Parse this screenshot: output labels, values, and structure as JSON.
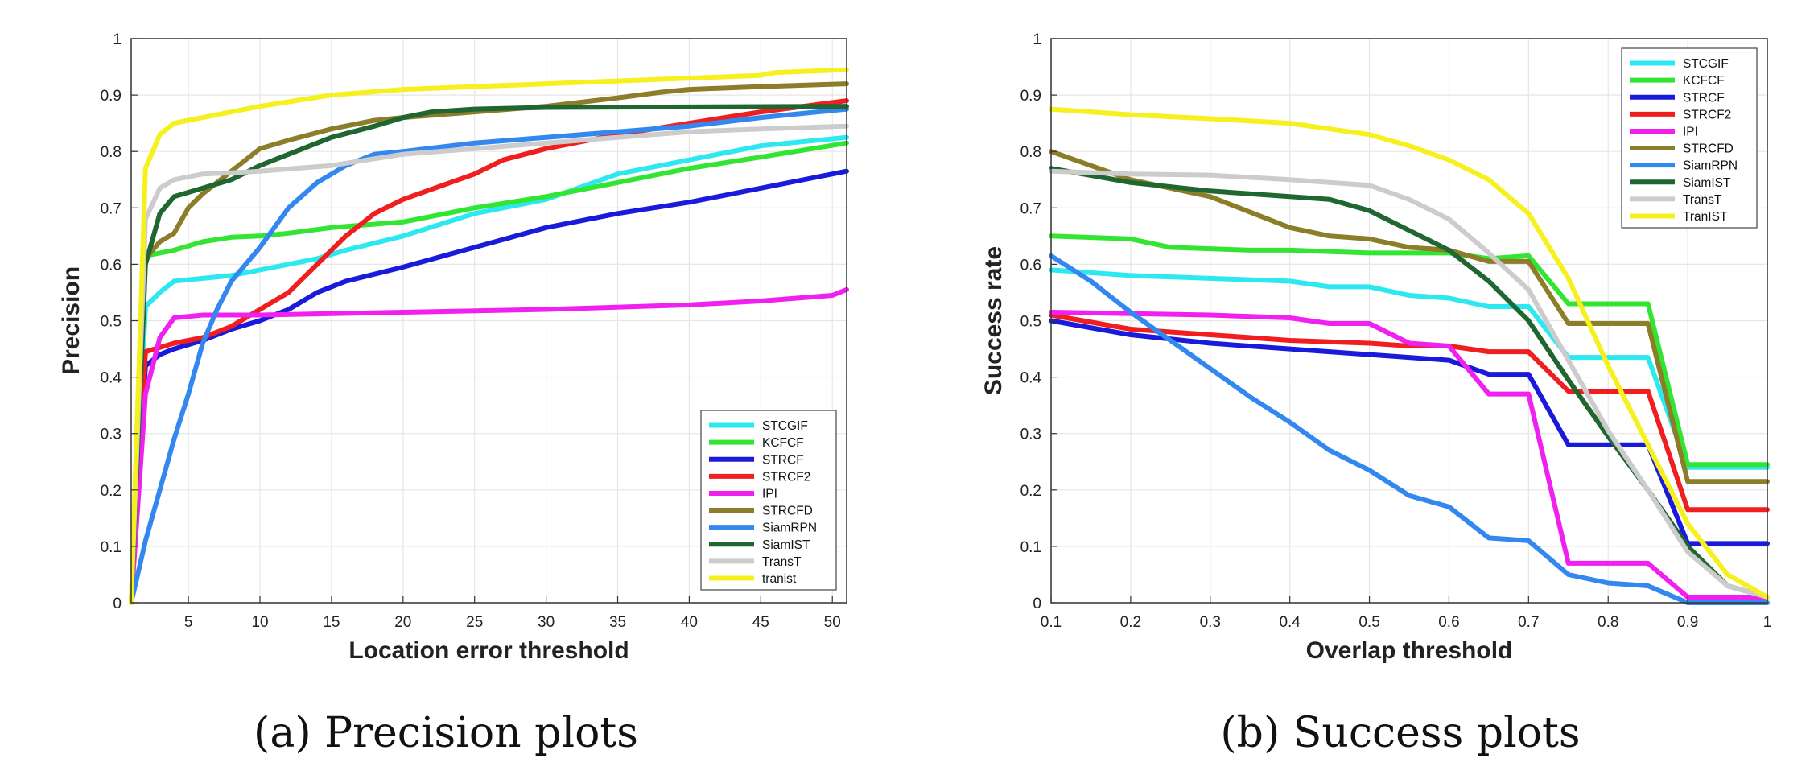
{
  "chart_data": [
    {
      "type": "line",
      "xlabel": "Location error threshold",
      "ylabel": "Precision",
      "caption": "(a) Precision plots",
      "xlim": [
        1,
        51
      ],
      "ylim": [
        0,
        1
      ],
      "xticks": [
        5,
        10,
        15,
        20,
        25,
        30,
        35,
        40,
        45,
        50
      ],
      "yticks": [
        0,
        0.1,
        0.2,
        0.3,
        0.4,
        0.5,
        0.6,
        0.7,
        0.8,
        0.9,
        1
      ],
      "grid": true,
      "legend_position": "bottom-right",
      "series": [
        {
          "name": "STCGIF",
          "color": "#2de8f0",
          "x": [
            1,
            2,
            3,
            4,
            6,
            8,
            10,
            12,
            14,
            16,
            20,
            25,
            30,
            35,
            40,
            45,
            51
          ],
          "y": [
            0,
            0.525,
            0.55,
            0.57,
            0.575,
            0.58,
            0.59,
            0.6,
            0.61,
            0.625,
            0.65,
            0.69,
            0.715,
            0.76,
            0.785,
            0.81,
            0.825
          ]
        },
        {
          "name": "KCFCF",
          "color": "#33e533",
          "x": [
            1,
            2,
            4,
            6,
            8,
            10,
            12,
            15,
            20,
            25,
            30,
            35,
            40,
            45,
            51
          ],
          "y": [
            0,
            0.615,
            0.625,
            0.64,
            0.648,
            0.65,
            0.655,
            0.665,
            0.675,
            0.7,
            0.72,
            0.745,
            0.77,
            0.79,
            0.815
          ]
        },
        {
          "name": "STRCF",
          "color": "#1a1add",
          "x": [
            1,
            2,
            3,
            4,
            6,
            8,
            10,
            12,
            14,
            16,
            20,
            25,
            30,
            35,
            40,
            45,
            51
          ],
          "y": [
            0,
            0.42,
            0.44,
            0.45,
            0.465,
            0.485,
            0.5,
            0.52,
            0.55,
            0.57,
            0.595,
            0.63,
            0.665,
            0.69,
            0.71,
            0.735,
            0.765
          ]
        },
        {
          "name": "STRCF2",
          "color": "#f01e1e",
          "x": [
            1,
            2,
            4,
            6,
            8,
            10,
            12,
            14,
            16,
            18,
            20,
            25,
            27,
            30,
            35,
            40,
            45,
            51
          ],
          "y": [
            0,
            0.445,
            0.46,
            0.47,
            0.49,
            0.52,
            0.55,
            0.6,
            0.65,
            0.69,
            0.715,
            0.76,
            0.785,
            0.805,
            0.83,
            0.85,
            0.87,
            0.89
          ]
        },
        {
          "name": "IPI",
          "color": "#f020f0",
          "x": [
            1,
            2,
            3,
            4,
            6,
            10,
            20,
            30,
            40,
            45,
            50,
            51
          ],
          "y": [
            0,
            0.37,
            0.47,
            0.505,
            0.51,
            0.51,
            0.515,
            0.52,
            0.528,
            0.535,
            0.545,
            0.555
          ]
        },
        {
          "name": "STRCFD",
          "color": "#8c7d28",
          "x": [
            1,
            2,
            3,
            4,
            5,
            6,
            8,
            10,
            12,
            15,
            18,
            20,
            25,
            30,
            35,
            38,
            40,
            45,
            51
          ],
          "y": [
            0,
            0.61,
            0.64,
            0.655,
            0.7,
            0.725,
            0.765,
            0.805,
            0.82,
            0.84,
            0.855,
            0.86,
            0.87,
            0.88,
            0.895,
            0.905,
            0.91,
            0.915,
            0.92
          ]
        },
        {
          "name": "SiamRPN",
          "color": "#3388f0",
          "x": [
            1,
            2,
            3,
            4,
            5,
            6,
            7,
            8,
            10,
            12,
            14,
            16,
            18,
            20,
            25,
            30,
            35,
            40,
            45,
            51
          ],
          "y": [
            0,
            0.11,
            0.2,
            0.29,
            0.37,
            0.46,
            0.52,
            0.57,
            0.63,
            0.7,
            0.745,
            0.775,
            0.795,
            0.8,
            0.815,
            0.825,
            0.835,
            0.845,
            0.86,
            0.875
          ]
        },
        {
          "name": "SiamIST",
          "color": "#1f6630",
          "x": [
            1,
            2,
            3,
            4,
            6,
            8,
            10,
            12,
            15,
            18,
            20,
            22,
            25,
            30,
            51
          ],
          "y": [
            0,
            0.6,
            0.69,
            0.72,
            0.735,
            0.75,
            0.775,
            0.795,
            0.825,
            0.845,
            0.86,
            0.87,
            0.875,
            0.878,
            0.88
          ]
        },
        {
          "name": "TransT",
          "color": "#cccccc",
          "x": [
            1,
            2,
            3,
            4,
            6,
            8,
            10,
            15,
            20,
            25,
            30,
            35,
            40,
            45,
            51
          ],
          "y": [
            0,
            0.68,
            0.735,
            0.75,
            0.76,
            0.762,
            0.765,
            0.775,
            0.795,
            0.805,
            0.815,
            0.825,
            0.835,
            0.84,
            0.845
          ]
        },
        {
          "name": "tranist",
          "color": "#f5f01e",
          "x": [
            1,
            2,
            3,
            4,
            5,
            8,
            10,
            15,
            20,
            25,
            30,
            35,
            40,
            45,
            46,
            51
          ],
          "y": [
            0,
            0.77,
            0.83,
            0.85,
            0.855,
            0.87,
            0.88,
            0.9,
            0.91,
            0.915,
            0.92,
            0.925,
            0.93,
            0.935,
            0.94,
            0.945
          ]
        }
      ]
    },
    {
      "type": "line",
      "xlabel": "Overlap threshold",
      "ylabel": "Success rate",
      "caption": "(b) Success plots",
      "xlim": [
        0.1,
        1
      ],
      "ylim": [
        0,
        1
      ],
      "xticks": [
        0.1,
        0.2,
        0.3,
        0.4,
        0.5,
        0.6,
        0.7,
        0.8,
        0.9,
        1
      ],
      "yticks": [
        0,
        0.1,
        0.2,
        0.3,
        0.4,
        0.5,
        0.6,
        0.7,
        0.8,
        0.9,
        1
      ],
      "grid": true,
      "legend_position": "top-right",
      "series": [
        {
          "name": "STCGIF",
          "color": "#2de8f0",
          "x": [
            0.1,
            0.2,
            0.3,
            0.4,
            0.45,
            0.5,
            0.55,
            0.6,
            0.65,
            0.7,
            0.75,
            0.85,
            0.9,
            1
          ],
          "y": [
            0.59,
            0.58,
            0.575,
            0.57,
            0.56,
            0.56,
            0.545,
            0.54,
            0.525,
            0.525,
            0.435,
            0.435,
            0.24,
            0.24
          ]
        },
        {
          "name": "KCFCF",
          "color": "#33e533",
          "x": [
            0.1,
            0.2,
            0.25,
            0.35,
            0.4,
            0.5,
            0.6,
            0.65,
            0.7,
            0.75,
            0.85,
            0.9,
            1
          ],
          "y": [
            0.65,
            0.645,
            0.63,
            0.625,
            0.625,
            0.62,
            0.62,
            0.61,
            0.615,
            0.53,
            0.53,
            0.245,
            0.245
          ]
        },
        {
          "name": "STRCF",
          "color": "#1a1add",
          "x": [
            0.1,
            0.2,
            0.3,
            0.4,
            0.45,
            0.5,
            0.55,
            0.6,
            0.65,
            0.7,
            0.75,
            0.85,
            0.9,
            1
          ],
          "y": [
            0.5,
            0.475,
            0.46,
            0.45,
            0.445,
            0.44,
            0.435,
            0.43,
            0.405,
            0.405,
            0.28,
            0.28,
            0.105,
            0.105
          ]
        },
        {
          "name": "STRCF2",
          "color": "#f01e1e",
          "x": [
            0.1,
            0.2,
            0.3,
            0.4,
            0.5,
            0.55,
            0.6,
            0.65,
            0.7,
            0.75,
            0.85,
            0.9,
            1
          ],
          "y": [
            0.51,
            0.485,
            0.475,
            0.465,
            0.46,
            0.455,
            0.455,
            0.445,
            0.445,
            0.375,
            0.375,
            0.165,
            0.165
          ]
        },
        {
          "name": "IPI",
          "color": "#f020f0",
          "x": [
            0.1,
            0.3,
            0.4,
            0.45,
            0.5,
            0.55,
            0.6,
            0.65,
            0.7,
            0.75,
            0.85,
            0.9,
            1
          ],
          "y": [
            0.515,
            0.51,
            0.505,
            0.495,
            0.495,
            0.46,
            0.455,
            0.37,
            0.37,
            0.07,
            0.07,
            0.01,
            0.01
          ]
        },
        {
          "name": "STRCFD",
          "color": "#8c7d28",
          "x": [
            0.1,
            0.2,
            0.3,
            0.4,
            0.45,
            0.5,
            0.55,
            0.6,
            0.65,
            0.7,
            0.75,
            0.85,
            0.9,
            1
          ],
          "y": [
            0.8,
            0.75,
            0.72,
            0.665,
            0.65,
            0.645,
            0.63,
            0.625,
            0.605,
            0.605,
            0.495,
            0.495,
            0.215,
            0.215
          ]
        },
        {
          "name": "SiamRPN",
          "color": "#3388f0",
          "x": [
            0.1,
            0.15,
            0.2,
            0.25,
            0.3,
            0.35,
            0.4,
            0.45,
            0.5,
            0.55,
            0.6,
            0.65,
            0.7,
            0.75,
            0.8,
            0.85,
            0.9,
            1
          ],
          "y": [
            0.615,
            0.57,
            0.515,
            0.465,
            0.415,
            0.365,
            0.32,
            0.27,
            0.235,
            0.19,
            0.17,
            0.115,
            0.11,
            0.05,
            0.035,
            0.03,
            0,
            0
          ]
        },
        {
          "name": "SiamIST",
          "color": "#1f6630",
          "x": [
            0.1,
            0.2,
            0.3,
            0.4,
            0.45,
            0.5,
            0.55,
            0.6,
            0.65,
            0.7,
            0.75,
            0.8,
            0.85,
            0.9,
            0.95,
            1
          ],
          "y": [
            0.77,
            0.745,
            0.73,
            0.72,
            0.715,
            0.695,
            0.66,
            0.625,
            0.57,
            0.5,
            0.395,
            0.295,
            0.2,
            0.1,
            0.03,
            0.01
          ]
        },
        {
          "name": "TransT",
          "color": "#cccccc",
          "x": [
            0.1,
            0.2,
            0.3,
            0.4,
            0.45,
            0.5,
            0.55,
            0.6,
            0.65,
            0.7,
            0.75,
            0.8,
            0.85,
            0.9,
            0.95,
            1
          ],
          "y": [
            0.765,
            0.76,
            0.758,
            0.75,
            0.745,
            0.74,
            0.715,
            0.68,
            0.62,
            0.555,
            0.43,
            0.305,
            0.2,
            0.09,
            0.03,
            0.01
          ]
        },
        {
          "name": "TranIST",
          "color": "#f5f01e",
          "x": [
            0.1,
            0.2,
            0.3,
            0.4,
            0.45,
            0.5,
            0.55,
            0.6,
            0.65,
            0.7,
            0.75,
            0.8,
            0.85,
            0.9,
            0.95,
            1
          ],
          "y": [
            0.875,
            0.865,
            0.858,
            0.85,
            0.84,
            0.83,
            0.81,
            0.785,
            0.75,
            0.69,
            0.575,
            0.42,
            0.28,
            0.14,
            0.05,
            0.01
          ]
        }
      ]
    }
  ]
}
